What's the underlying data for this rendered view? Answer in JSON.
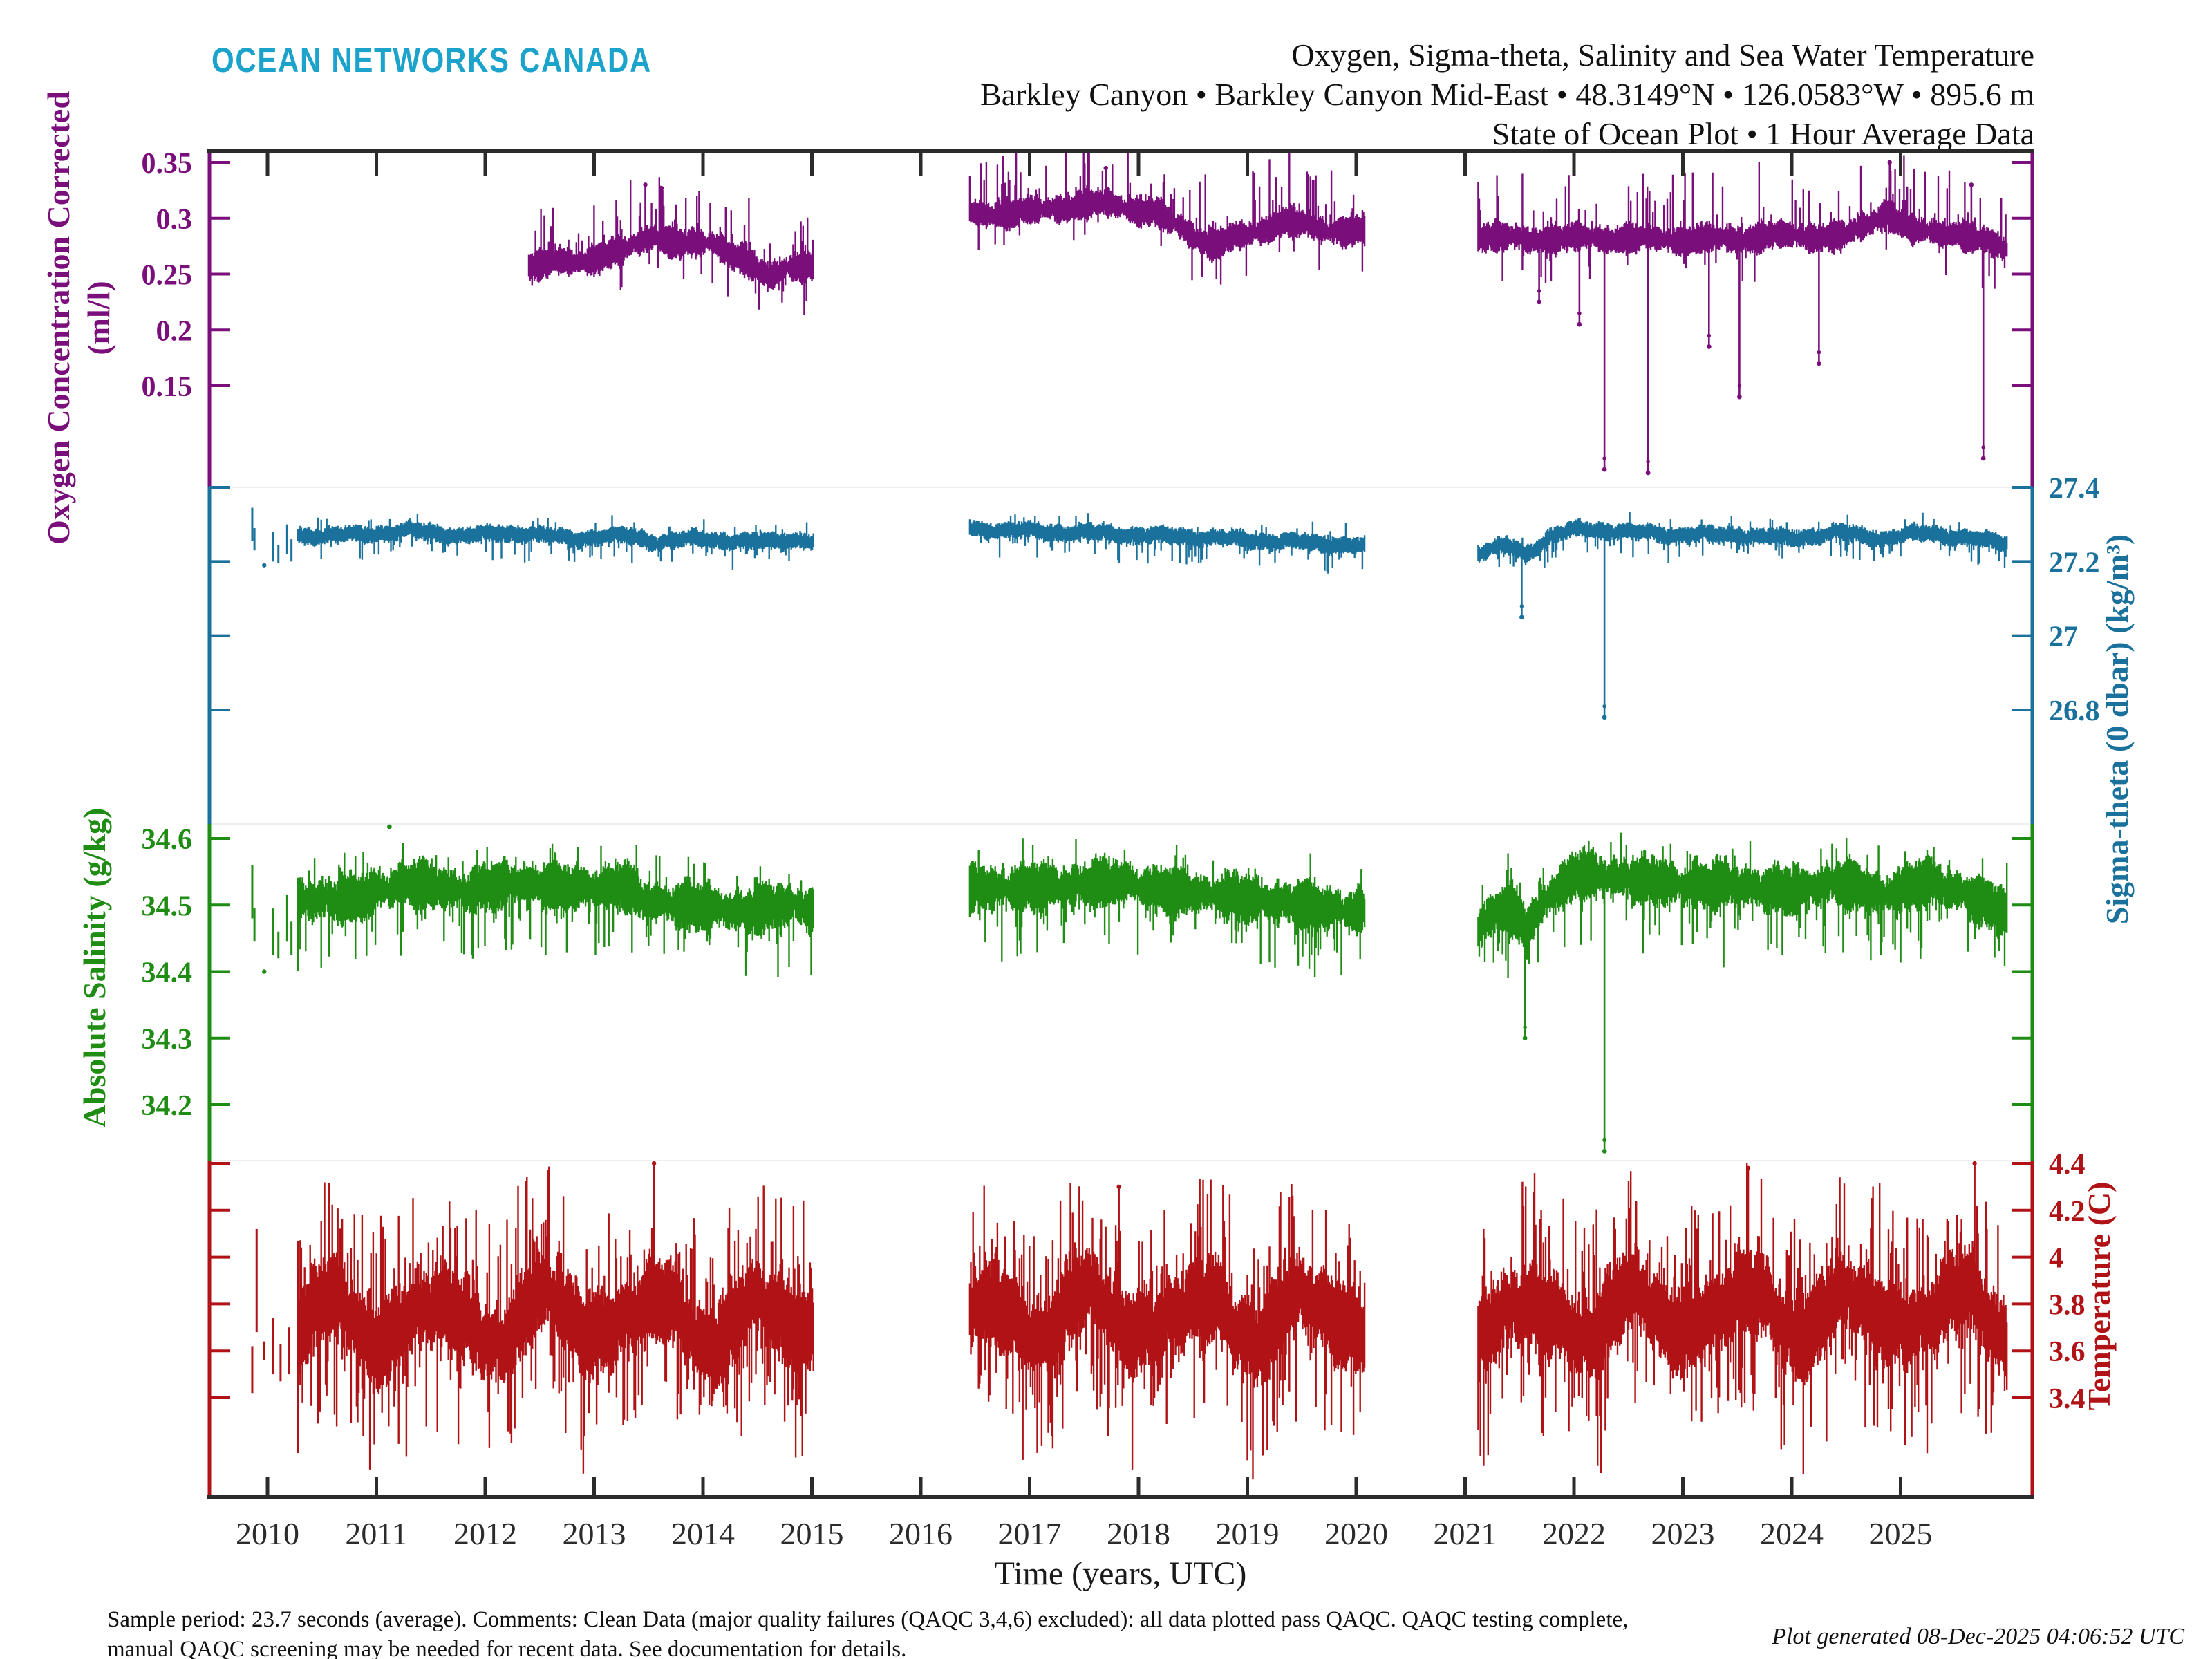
{
  "branding": {
    "logo_text": "OCEAN NETWORKS CANADA",
    "logo_color": "#1ba3cb"
  },
  "title": {
    "line1": "Oxygen, Sigma-theta, Salinity and Sea Water Temperature",
    "line2": "Barkley Canyon • Barkley Canyon Mid-East • 48.3149°N • 126.0583°W • 895.6 m",
    "line3": "State of Ocean Plot • 1 Hour Average Data"
  },
  "footer": {
    "line1": "Sample period: 23.7 seconds (average).  Comments: Clean Data (major quality failures (QAQC 3,4,6) excluded): all data plotted pass QAQC. QAQC testing complete,",
    "line2": "manual QAQC screening may be needed for recent data.  See documentation for details.",
    "generated": "Plot generated 08-Dec-2025 04:06:52 UTC"
  },
  "chart_data": {
    "type": "scatter",
    "note": "1-hour-average ocean sensor data, four stacked series sharing one time axis. Trend arrays are [decimal_year, value] keypoints read from the plot; spikes are [decimal_year, extreme_value]; sparse are isolated early clusters [decimal_year, center, halfheight].",
    "xaxis": {
      "label": "Time (years, UTC)",
      "ticks": [
        2010,
        2011,
        2012,
        2013,
        2014,
        2015,
        2016,
        2017,
        2018,
        2019,
        2020,
        2021,
        2022,
        2023,
        2024,
        2025
      ],
      "range": [
        2009.47,
        2026.2
      ]
    },
    "series": [
      {
        "name": "Oxygen Concentration Corrected",
        "units": "ml/l",
        "axis_label_lines": [
          "Oxygen Concentration Corrected",
          "(ml/l)"
        ],
        "color": "#7a0e7a",
        "axis_side": "left",
        "tick_labels": [
          "0.35",
          "0.3",
          "0.25",
          "0.2",
          "0.15"
        ],
        "ylim_of_band": [
          0.362,
          0.06
        ],
        "segments": [
          [
            2012.4,
            2015.02
          ],
          [
            2016.45,
            2020.08
          ],
          [
            2021.12,
            2025.98
          ]
        ],
        "trend": [
          [
            2012.4,
            0.258
          ],
          [
            2012.9,
            0.262
          ],
          [
            2013.3,
            0.272
          ],
          [
            2013.55,
            0.285
          ],
          [
            2013.8,
            0.276
          ],
          [
            2014.1,
            0.278
          ],
          [
            2014.38,
            0.262
          ],
          [
            2014.6,
            0.246
          ],
          [
            2014.78,
            0.258
          ],
          [
            2015.02,
            0.257
          ],
          [
            2016.45,
            0.303
          ],
          [
            2017.0,
            0.306
          ],
          [
            2017.55,
            0.313
          ],
          [
            2017.85,
            0.311
          ],
          [
            2018.15,
            0.305
          ],
          [
            2018.45,
            0.287
          ],
          [
            2018.7,
            0.276
          ],
          [
            2019.0,
            0.285
          ],
          [
            2019.35,
            0.298
          ],
          [
            2019.65,
            0.29
          ],
          [
            2020.08,
            0.289
          ],
          [
            2021.12,
            0.284
          ],
          [
            2021.6,
            0.281
          ],
          [
            2022.1,
            0.283
          ],
          [
            2022.7,
            0.281
          ],
          [
            2023.3,
            0.281
          ],
          [
            2023.9,
            0.284
          ],
          [
            2024.5,
            0.284
          ],
          [
            2024.88,
            0.305
          ],
          [
            2025.1,
            0.288
          ],
          [
            2025.5,
            0.287
          ],
          [
            2025.98,
            0.272
          ]
        ],
        "noise_halfwidth": 0.012,
        "spikes_down": [
          [
            2021.68,
            0.225
          ],
          [
            2022.05,
            0.205
          ],
          [
            2022.28,
            0.075
          ],
          [
            2022.68,
            0.072
          ],
          [
            2023.24,
            0.185
          ],
          [
            2023.52,
            0.14
          ],
          [
            2024.25,
            0.17
          ],
          [
            2025.76,
            0.085
          ]
        ],
        "spikes_up": [
          [
            2013.47,
            0.33
          ],
          [
            2013.62,
            0.327
          ],
          [
            2017.7,
            0.345
          ],
          [
            2024.9,
            0.35
          ],
          [
            2025.65,
            0.33
          ]
        ],
        "sparse": [],
        "outliers": []
      },
      {
        "name": "Sigma-theta (0 dbar)",
        "units": "kg/m³",
        "axis_label_lines": [
          "Sigma-theta (0 dbar) (kg/m³)"
        ],
        "color": "#19719c",
        "axis_side": "right",
        "tick_labels": [
          "27.4",
          "27.2",
          "27",
          "26.8"
        ],
        "ylim_of_band": [
          27.4,
          26.49
        ],
        "segments": [
          [
            2010.28,
            2015.02
          ],
          [
            2016.45,
            2020.08
          ],
          [
            2021.12,
            2025.98
          ]
        ],
        "trend": [
          [
            2010.28,
            27.27
          ],
          [
            2010.8,
            27.272
          ],
          [
            2011.3,
            27.283
          ],
          [
            2011.8,
            27.27
          ],
          [
            2012.3,
            27.278
          ],
          [
            2012.8,
            27.262
          ],
          [
            2013.3,
            27.27
          ],
          [
            2013.6,
            27.252
          ],
          [
            2014.0,
            27.262
          ],
          [
            2014.4,
            27.252
          ],
          [
            2014.8,
            27.26
          ],
          [
            2015.02,
            27.252
          ],
          [
            2016.45,
            27.288
          ],
          [
            2017.3,
            27.28
          ],
          [
            2018.0,
            27.272
          ],
          [
            2018.8,
            27.262
          ],
          [
            2019.5,
            27.252
          ],
          [
            2020.08,
            27.242
          ],
          [
            2021.12,
            27.225
          ],
          [
            2021.4,
            27.243
          ],
          [
            2021.55,
            27.22
          ],
          [
            2021.8,
            27.27
          ],
          [
            2022.05,
            27.288
          ],
          [
            2022.5,
            27.28
          ],
          [
            2023.0,
            27.272
          ],
          [
            2023.5,
            27.272
          ],
          [
            2024.0,
            27.262
          ],
          [
            2024.45,
            27.278
          ],
          [
            2024.85,
            27.262
          ],
          [
            2025.25,
            27.278
          ],
          [
            2025.6,
            27.262
          ],
          [
            2025.98,
            27.252
          ]
        ],
        "noise_halfwidth": 0.022,
        "spikes_down": [
          [
            2021.52,
            27.05
          ],
          [
            2022.28,
            26.78
          ]
        ],
        "spikes_up": [],
        "sparse": [
          [
            2009.86,
            27.3,
            0.045
          ],
          [
            2009.88,
            27.26,
            0.03
          ],
          [
            2009.97,
            27.19,
            0.005
          ],
          [
            2010.05,
            27.24,
            0.04
          ],
          [
            2010.1,
            27.22,
            0.025
          ],
          [
            2010.18,
            27.26,
            0.04
          ],
          [
            2010.22,
            27.23,
            0.03
          ]
        ],
        "outliers": []
      },
      {
        "name": "Absolute Salinity",
        "units": "g/kg",
        "axis_label_lines": [
          "Absolute Salinity (g/kg)"
        ],
        "color": "#1f8c14",
        "axis_side": "left",
        "tick_labels": [
          "34.6",
          "34.5",
          "34.4",
          "34.3",
          "34.2"
        ],
        "ylim_of_band": [
          34.615,
          34.11
        ],
        "segments": [
          [
            2010.28,
            2015.02
          ],
          [
            2016.45,
            2020.08
          ],
          [
            2021.12,
            2025.98
          ]
        ],
        "trend": [
          [
            2010.28,
            34.505
          ],
          [
            2010.8,
            34.51
          ],
          [
            2011.3,
            34.535
          ],
          [
            2011.8,
            34.52
          ],
          [
            2012.3,
            34.535
          ],
          [
            2012.8,
            34.525
          ],
          [
            2013.3,
            34.53
          ],
          [
            2013.45,
            34.505
          ],
          [
            2013.9,
            34.5
          ],
          [
            2014.35,
            34.49
          ],
          [
            2014.8,
            34.5
          ],
          [
            2015.02,
            34.495
          ],
          [
            2016.45,
            34.525
          ],
          [
            2017.2,
            34.528
          ],
          [
            2017.8,
            34.535
          ],
          [
            2018.3,
            34.52
          ],
          [
            2018.9,
            34.512
          ],
          [
            2019.5,
            34.5
          ],
          [
            2020.08,
            34.49
          ],
          [
            2021.12,
            34.468
          ],
          [
            2021.4,
            34.5
          ],
          [
            2021.55,
            34.465
          ],
          [
            2021.8,
            34.52
          ],
          [
            2022.05,
            34.548
          ],
          [
            2022.5,
            34.54
          ],
          [
            2023.0,
            34.53
          ],
          [
            2023.5,
            34.53
          ],
          [
            2024.0,
            34.52
          ],
          [
            2024.45,
            34.535
          ],
          [
            2024.85,
            34.515
          ],
          [
            2025.25,
            34.535
          ],
          [
            2025.6,
            34.515
          ],
          [
            2025.98,
            34.49
          ]
        ],
        "noise_halfwidth": 0.032,
        "spikes_down": [
          [
            2021.55,
            34.3
          ],
          [
            2022.28,
            34.13
          ]
        ],
        "spikes_up": [],
        "sparse": [
          [
            2009.86,
            34.52,
            0.04
          ],
          [
            2009.88,
            34.47,
            0.025
          ],
          [
            2009.97,
            34.4,
            0.005
          ],
          [
            2010.05,
            34.46,
            0.035
          ],
          [
            2010.1,
            34.44,
            0.02
          ],
          [
            2010.18,
            34.48,
            0.035
          ],
          [
            2010.22,
            34.45,
            0.025
          ]
        ],
        "outliers": [
          [
            2011.12,
            34.62
          ]
        ]
      },
      {
        "name": "Temperature",
        "units": "C",
        "axis_label_lines": [
          "Temperature (C)"
        ],
        "color": "#b01215",
        "axis_side": "right",
        "tick_labels": [
          "4.4",
          "4.2",
          "4",
          "3.8",
          "3.6",
          "3.4"
        ],
        "ylim_of_band": [
          4.41,
          2.97
        ],
        "segments": [
          [
            2010.28,
            2015.02
          ],
          [
            2016.45,
            2020.08
          ],
          [
            2021.12,
            2025.98
          ]
        ],
        "trend": [
          [
            2010.28,
            3.72
          ],
          [
            2011.0,
            3.73
          ],
          [
            2012.0,
            3.72
          ],
          [
            2013.0,
            3.75
          ],
          [
            2014.0,
            3.73
          ],
          [
            2015.02,
            3.72
          ],
          [
            2016.45,
            3.73
          ],
          [
            2017.5,
            3.76
          ],
          [
            2018.5,
            3.74
          ],
          [
            2019.5,
            3.75
          ],
          [
            2020.08,
            3.74
          ],
          [
            2021.12,
            3.72
          ],
          [
            2022.0,
            3.74
          ],
          [
            2023.0,
            3.76
          ],
          [
            2023.7,
            3.78
          ],
          [
            2024.4,
            3.75
          ],
          [
            2025.3,
            3.78
          ],
          [
            2025.98,
            3.74
          ]
        ],
        "seasonal_amplitude": 0.09,
        "seasonal_phase": 0.3,
        "noise_halfwidth": 0.16,
        "spikes_down": [],
        "spikes_up": [
          [
            2013.55,
            4.44
          ],
          [
            2017.82,
            4.3
          ],
          [
            2023.6,
            4.38
          ],
          [
            2025.68,
            4.42
          ]
        ],
        "sparse": [
          [
            2009.86,
            3.52,
            0.1
          ],
          [
            2009.9,
            3.9,
            0.22
          ],
          [
            2009.97,
            3.6,
            0.04
          ],
          [
            2010.05,
            3.62,
            0.12
          ],
          [
            2010.12,
            3.55,
            0.08
          ],
          [
            2010.2,
            3.6,
            0.1
          ]
        ],
        "outliers": []
      }
    ]
  }
}
